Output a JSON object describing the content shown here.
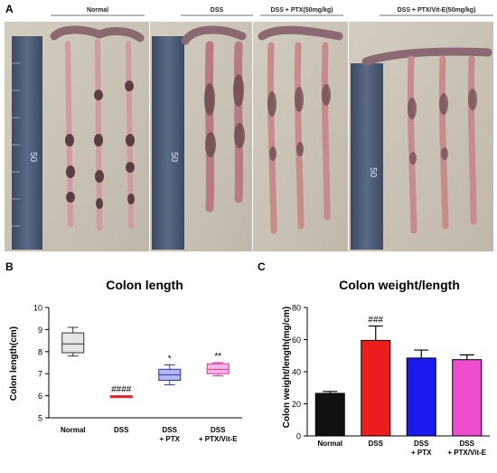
{
  "panel_a": {
    "letter": "A",
    "groups": [
      "Normal",
      "DSS",
      "DSS + PTX(50mg/kg)",
      "DSS + PTX/Vit-E(50mg/kg)"
    ],
    "colors": {
      "background": "#c9c2b4",
      "ruler": "#4a5a73",
      "colon_wall": "#c98a8e",
      "colon_dark": "#6b4a4c"
    }
  },
  "panel_b": {
    "letter": "B"
  },
  "panel_c": {
    "letter": "C"
  },
  "chart_data": [
    {
      "type": "box",
      "title": "Colon length",
      "xlabel": "",
      "ylabel": "Colon length(cm)",
      "ylim": [
        5,
        10
      ],
      "yticks": [
        5,
        6,
        7,
        8,
        9,
        10
      ],
      "categories": [
        "Normal",
        "DSS",
        "DSS\n+ PTX",
        "DSS\n+ PTX/Vit-E"
      ],
      "boxes": [
        {
          "min": 7.8,
          "q1": 7.95,
          "median": 8.35,
          "q3": 8.85,
          "max": 9.1,
          "annotation": "",
          "color": "#333333",
          "fill": "#e6e6e6"
        },
        {
          "min": 5.95,
          "q1": 5.95,
          "median": 5.98,
          "q3": 6.0,
          "max": 6.0,
          "annotation": "####",
          "color": "#e8242a",
          "fill": "#e8242a"
        },
        {
          "min": 6.5,
          "q1": 6.7,
          "median": 6.95,
          "q3": 7.2,
          "max": 7.4,
          "annotation": "*",
          "color": "#2432d6",
          "fill": "#b4b8ee"
        },
        {
          "min": 6.9,
          "q1": 7.0,
          "median": 7.2,
          "q3": 7.45,
          "max": 7.5,
          "annotation": "**",
          "color": "#e0309a",
          "fill": "#f6b8e4"
        }
      ],
      "grid": false,
      "legend": "none"
    },
    {
      "type": "bar",
      "title": "Colon weight/length",
      "xlabel": "",
      "ylabel": "Colon weight/length(mg/cm)",
      "ylim": [
        0,
        80
      ],
      "yticks": [
        0,
        20,
        40,
        60,
        80
      ],
      "categories": [
        "Normal",
        "DSS",
        "DSS\n+ PTX",
        "DSS\n+ PTX/Vit-E"
      ],
      "values": [
        26.5,
        59.5,
        48.5,
        47.5
      ],
      "errors": [
        1.2,
        9.0,
        5.0,
        3.0
      ],
      "annotations": [
        "",
        "###",
        "",
        ""
      ],
      "colors": [
        "#111111",
        "#ee1c1c",
        "#1a1aee",
        "#f04cd0"
      ],
      "grid": false,
      "legend": "none"
    }
  ]
}
